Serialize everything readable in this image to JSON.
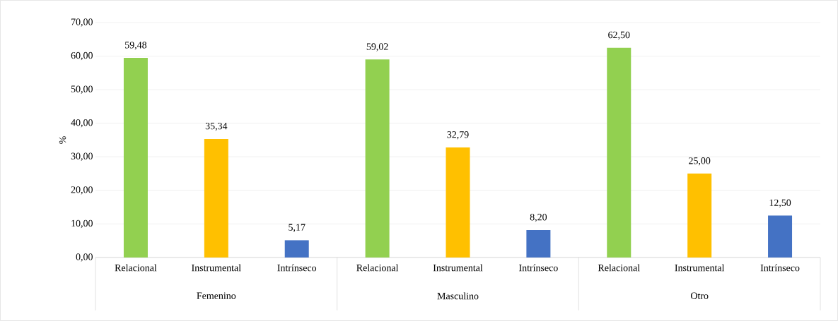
{
  "chart_data": {
    "type": "bar",
    "ylabel": "%",
    "categories": [
      "Femenino",
      "Masculino",
      "Otro"
    ],
    "series": [
      {
        "name": "Relacional",
        "color": "#92d050",
        "values": [
          59.48,
          59.02,
          62.5
        ],
        "value_labels": [
          "59,48",
          "59,02",
          "62,50"
        ]
      },
      {
        "name": "Instrumental",
        "color": "#ffc000",
        "values": [
          35.34,
          32.79,
          25.0
        ],
        "value_labels": [
          "35,34",
          "32,79",
          "25,00"
        ]
      },
      {
        "name": "Intrínseco",
        "color": "#4472c4",
        "values": [
          5.17,
          8.2,
          12.5
        ],
        "value_labels": [
          "5,17",
          "8,20",
          "12,50"
        ]
      }
    ],
    "ylim": [
      0,
      70
    ],
    "yticks": [
      {
        "value": 0,
        "label": "0,00"
      },
      {
        "value": 10,
        "label": "10,00"
      },
      {
        "value": 20,
        "label": "20,00"
      },
      {
        "value": 30,
        "label": "30,00"
      },
      {
        "value": 40,
        "label": "40,00"
      },
      {
        "value": 50,
        "label": "50,00"
      },
      {
        "value": 60,
        "label": "60,00"
      },
      {
        "value": 70,
        "label": "70,00"
      }
    ],
    "grid": "y"
  }
}
